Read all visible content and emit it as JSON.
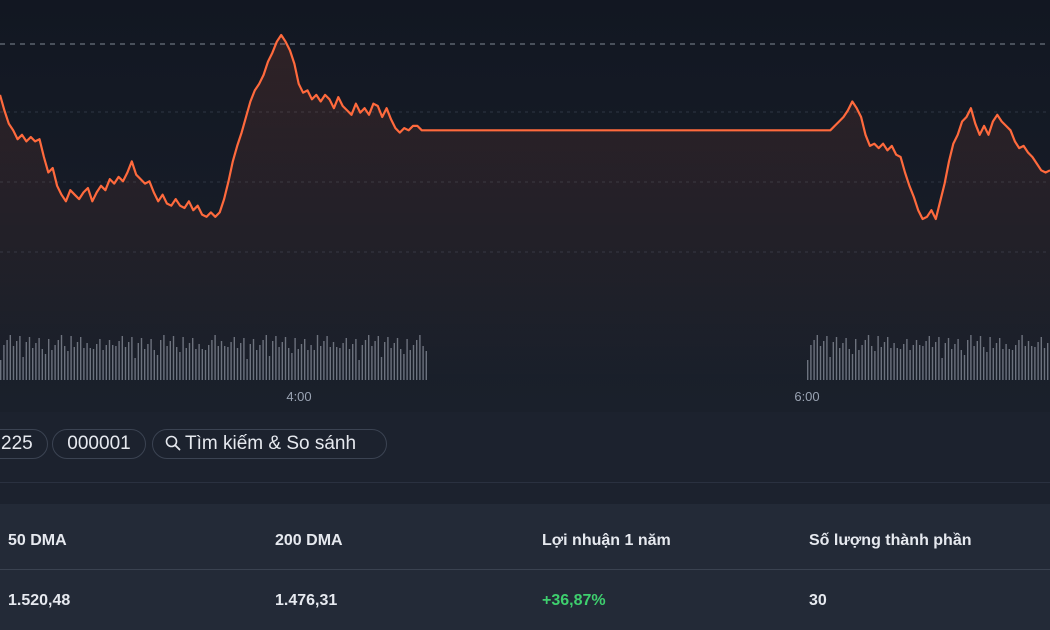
{
  "chart": {
    "time_labels": [
      "4:00",
      "6:00"
    ],
    "colors": {
      "line": "#ff6a3d",
      "volume": "#8e95a3",
      "grid": "#9ba3b0"
    }
  },
  "chart_data": {
    "type": "line",
    "x_ticks": [
      "4:00",
      "6:00"
    ],
    "series_price": [
      0.88,
      0.81,
      0.75,
      0.72,
      0.68,
      0.7,
      0.67,
      0.69,
      0.67,
      0.68,
      0.6,
      0.53,
      0.55,
      0.47,
      0.43,
      0.4,
      0.45,
      0.43,
      0.41,
      0.44,
      0.46,
      0.4,
      0.44,
      0.47,
      0.45,
      0.5,
      0.48,
      0.51,
      0.49,
      0.53,
      0.58,
      0.52,
      0.5,
      0.48,
      0.49,
      0.44,
      0.4,
      0.43,
      0.39,
      0.38,
      0.41,
      0.38,
      0.37,
      0.4,
      0.36,
      0.38,
      0.34,
      0.33,
      0.35,
      0.33,
      0.35,
      0.41,
      0.49,
      0.58,
      0.65,
      0.71,
      0.78,
      0.85,
      0.9,
      0.93,
      0.97,
      1.03,
      1.07,
      1.12,
      1.15,
      1.12,
      1.08,
      1.02,
      0.93,
      0.89,
      0.9,
      0.86,
      0.88,
      0.85,
      0.88,
      0.86,
      0.82,
      0.87,
      0.83,
      0.81,
      0.79,
      0.84,
      0.8,
      0.82,
      0.79,
      0.84,
      0.83,
      0.78,
      0.82,
      0.77,
      0.73,
      0.71,
      0.73,
      0.72,
      0.74,
      0.74,
      0.72,
      0.72,
      0.72,
      0.72,
      0.72,
      0.72,
      0.72,
      0.72,
      0.72,
      0.72,
      0.72,
      0.72,
      0.72,
      0.72,
      0.72,
      0.72,
      0.72,
      0.72,
      0.72,
      0.72,
      0.72,
      0.72,
      0.72,
      0.72,
      0.72,
      0.72,
      0.72,
      0.72,
      0.72,
      0.72,
      0.72,
      0.72,
      0.72,
      0.72,
      0.72,
      0.72,
      0.72,
      0.72,
      0.72,
      0.72,
      0.72,
      0.72,
      0.72,
      0.72,
      0.72,
      0.72,
      0.72,
      0.72,
      0.72,
      0.72,
      0.72,
      0.72,
      0.72,
      0.72,
      0.72,
      0.72,
      0.72,
      0.72,
      0.72,
      0.72,
      0.72,
      0.72,
      0.72,
      0.72,
      0.72,
      0.72,
      0.72,
      0.72,
      0.72,
      0.72,
      0.72,
      0.72,
      0.72,
      0.72,
      0.72,
      0.72,
      0.72,
      0.72,
      0.72,
      0.72,
      0.72,
      0.72,
      0.72,
      0.72,
      0.72,
      0.72,
      0.72,
      0.72,
      0.72,
      0.72,
      0.72,
      0.72,
      0.72,
      0.72,
      0.74,
      0.76,
      0.78,
      0.81,
      0.85,
      0.82,
      0.78,
      0.7,
      0.65,
      0.66,
      0.64,
      0.66,
      0.63,
      0.65,
      0.61,
      0.6,
      0.53,
      0.47,
      0.42,
      0.36,
      0.32,
      0.33,
      0.36,
      0.32,
      0.4,
      0.48,
      0.58,
      0.66,
      0.7,
      0.76,
      0.78,
      0.82,
      0.75,
      0.7,
      0.74,
      0.7,
      0.76,
      0.79,
      0.76,
      0.74,
      0.72,
      0.67,
      0.64,
      0.65,
      0.62,
      0.6,
      0.57,
      0.54,
      0.53,
      0.54
    ],
    "volume_present": true,
    "gap_between_sessions": true
  },
  "toolbar": {
    "chip0": "225",
    "chip1": "000001",
    "search_label": "Tìm kiếm & So sánh"
  },
  "stats": {
    "headers": [
      "50 DMA",
      "200 DMA",
      "Lợi nhuận 1 năm",
      "Số lượng thành phần"
    ],
    "values": [
      "1.520,48",
      "1.476,31",
      "+36,87%",
      "30"
    ]
  }
}
